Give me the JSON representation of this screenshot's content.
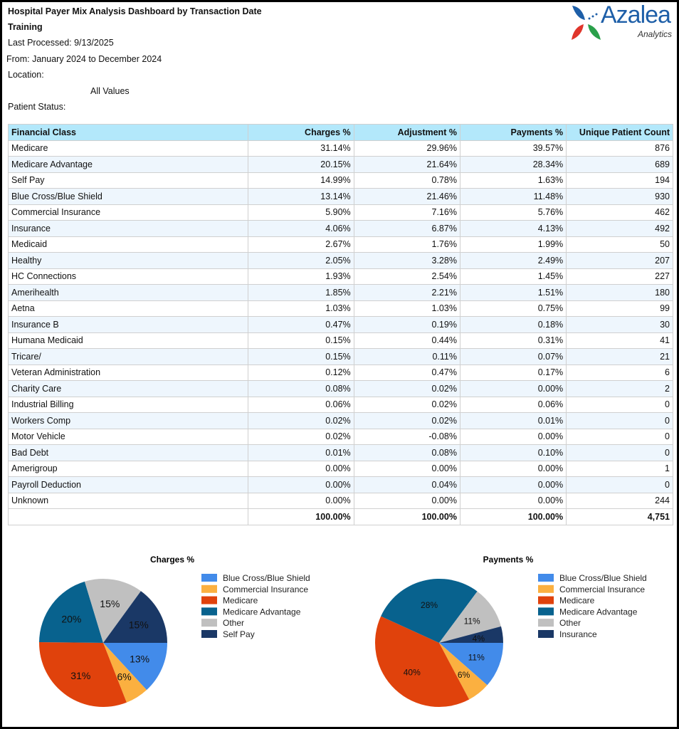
{
  "header": {
    "title": "Hospital Payer Mix Analysis Dashboard by Transaction Date",
    "subtitle": "Training",
    "last_processed": "Last Processed: 9/13/2025",
    "date_range": "From: January 2024 to December 2024",
    "location_label": "Location:",
    "location_value": "All Values",
    "patient_status_label": "Patient Status:"
  },
  "logo": {
    "name": "Azalea",
    "tagline": "Analytics"
  },
  "table": {
    "columns": [
      "Financial Class",
      "Charges %",
      "Adjustment %",
      "Payments %",
      "Unique Patient Count"
    ],
    "rows": [
      [
        "Medicare",
        "31.14%",
        "29.96%",
        "39.57%",
        "876"
      ],
      [
        "Medicare Advantage",
        "20.15%",
        "21.64%",
        "28.34%",
        "689"
      ],
      [
        "Self Pay",
        "14.99%",
        "0.78%",
        "1.63%",
        "194"
      ],
      [
        "Blue Cross/Blue Shield",
        "13.14%",
        "21.46%",
        "11.48%",
        "930"
      ],
      [
        "Commercial Insurance",
        "5.90%",
        "7.16%",
        "5.76%",
        "462"
      ],
      [
        "Insurance",
        "4.06%",
        "6.87%",
        "4.13%",
        "492"
      ],
      [
        "Medicaid",
        "2.67%",
        "1.76%",
        "1.99%",
        "50"
      ],
      [
        "Healthy",
        "2.05%",
        "3.28%",
        "2.49%",
        "207"
      ],
      [
        "HC Connections",
        "1.93%",
        "2.54%",
        "1.45%",
        "227"
      ],
      [
        "Amerihealth",
        "1.85%",
        "2.21%",
        "1.51%",
        "180"
      ],
      [
        "Aetna",
        "1.03%",
        "1.03%",
        "0.75%",
        "99"
      ],
      [
        "Insurance B",
        "0.47%",
        "0.19%",
        "0.18%",
        "30"
      ],
      [
        "Humana Medicaid",
        "0.15%",
        "0.44%",
        "0.31%",
        "41"
      ],
      [
        "Tricare/",
        "0.15%",
        "0.11%",
        "0.07%",
        "21"
      ],
      [
        "Veteran Administration",
        "0.12%",
        "0.47%",
        "0.17%",
        "6"
      ],
      [
        "Charity Care",
        "0.08%",
        "0.02%",
        "0.00%",
        "2"
      ],
      [
        "Industrial Billing",
        "0.06%",
        "0.02%",
        "0.06%",
        "0"
      ],
      [
        "Workers Comp",
        "0.02%",
        "0.02%",
        "0.01%",
        "0"
      ],
      [
        "Motor Vehicle",
        "0.02%",
        "-0.08%",
        "0.00%",
        "0"
      ],
      [
        "Bad Debt",
        "0.01%",
        "0.08%",
        "0.10%",
        "0"
      ],
      [
        "Amerigroup",
        "0.00%",
        "0.00%",
        "0.00%",
        "1"
      ],
      [
        "Payroll Deduction",
        "0.00%",
        "0.04%",
        "0.00%",
        "0"
      ],
      [
        "Unknown",
        "0.00%",
        "0.00%",
        "0.00%",
        "244"
      ]
    ],
    "total": [
      "",
      "100.00%",
      "100.00%",
      "100.00%",
      "4,751"
    ]
  },
  "chart_data": [
    {
      "type": "pie",
      "title": "Charges %",
      "legend": "right",
      "slices": [
        {
          "name": "Blue Cross/Blue Shield",
          "value": 13.14,
          "label": "13%",
          "color": "#428bea"
        },
        {
          "name": "Commercial Insurance",
          "value": 5.9,
          "label": "6%",
          "color": "#fbb040"
        },
        {
          "name": "Medicare",
          "value": 31.14,
          "label": "31%",
          "color": "#e0420c"
        },
        {
          "name": "Medicare Advantage",
          "value": 20.15,
          "label": "20%",
          "color": "#08628e"
        },
        {
          "name": "Other",
          "value": 14.68,
          "label": "15%",
          "color": "#c0c0c0"
        },
        {
          "name": "Self Pay",
          "value": 14.99,
          "label": "15%",
          "color": "#1a3866"
        }
      ]
    },
    {
      "type": "pie",
      "title": "Payments %",
      "legend": "right",
      "slices": [
        {
          "name": "Blue Cross/Blue Shield",
          "value": 11.48,
          "label": "11%",
          "color": "#428bea"
        },
        {
          "name": "Commercial Insurance",
          "value": 5.76,
          "label": "6%",
          "color": "#fbb040"
        },
        {
          "name": "Medicare",
          "value": 39.57,
          "label": "40%",
          "color": "#e0420c"
        },
        {
          "name": "Medicare Advantage",
          "value": 28.34,
          "label": "28%",
          "color": "#08628e"
        },
        {
          "name": "Other",
          "value": 10.72,
          "label": "11%",
          "color": "#c0c0c0"
        },
        {
          "name": "Insurance",
          "value": 4.13,
          "label": "4%",
          "color": "#1a3866"
        }
      ]
    }
  ]
}
